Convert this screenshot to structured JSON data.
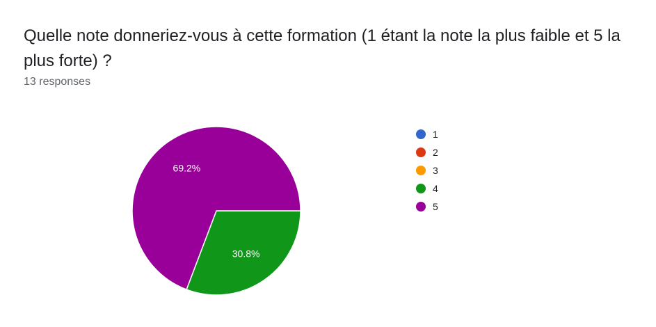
{
  "header": {
    "question": "Quelle note donneriez-vous à cette formation (1 étant la note la plus faible et 5 la plus forte) ?",
    "responses": "13 responses"
  },
  "chart_data": {
    "type": "pie",
    "categories": [
      "1",
      "2",
      "3",
      "4",
      "5"
    ],
    "values": [
      0,
      0,
      0,
      4,
      9
    ],
    "percent_labels": [
      "",
      "",
      "",
      "30.8%",
      "69.2%"
    ],
    "colors": [
      "#3366cc",
      "#dc3912",
      "#ff9900",
      "#109618",
      "#990099"
    ],
    "title": "Quelle note donneriez-vous à cette formation (1 étant la note la plus faible et 5 la plus forte) ?",
    "legend_placement": "right",
    "start": "3-o'clock",
    "direction": "clockwise"
  }
}
